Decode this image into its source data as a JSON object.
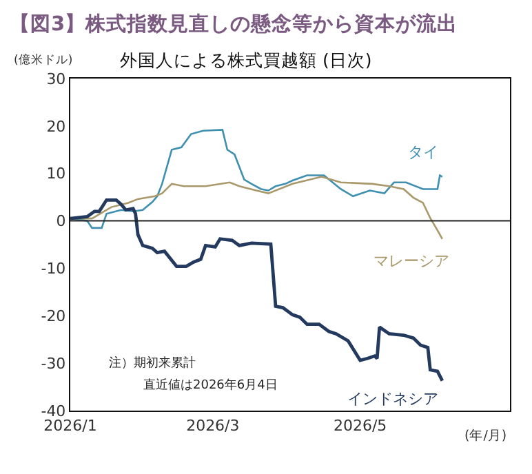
{
  "chart_data": {
    "type": "line",
    "title": "【図3】株式指数見直しの懸念等から資本が流出",
    "subtitle": "外国人による株式買越額 (日次)",
    "ylabel": "(億米ドル)",
    "xlabel": "(年/月)",
    "annotations": [
      "注）期初来累計",
      "直近値は2026年6月4日"
    ],
    "xlim": [
      "2026-01-01",
      "2026-07-02"
    ],
    "xticks": [
      {
        "value": "2026-01-01",
        "label": "2026/1"
      },
      {
        "value": "2026-03-01",
        "label": "2026/3"
      },
      {
        "value": "2026-05-01",
        "label": "2026/5"
      }
    ],
    "ylim": [
      -40,
      30
    ],
    "yticks": [
      -40,
      -30,
      -20,
      -10,
      0,
      10,
      20,
      30
    ],
    "grid": false,
    "legend": false,
    "marker": "none",
    "line_style": "solid",
    "ref_lines": [
      {
        "axis": "y",
        "value": 0
      }
    ],
    "series": [
      {
        "name": "タイ",
        "color": "#3e8fb0",
        "x": [
          "2026-01-01",
          "2026-01-08",
          "2026-01-10",
          "2026-01-14",
          "2026-01-16",
          "2026-01-22",
          "2026-01-27",
          "2026-01-31",
          "2026-02-04",
          "2026-02-06",
          "2026-02-08",
          "2026-02-12",
          "2026-02-16",
          "2026-02-20",
          "2026-02-25",
          "2026-03-05",
          "2026-03-07",
          "2026-03-10",
          "2026-03-14",
          "2026-03-17",
          "2026-03-21",
          "2026-03-24",
          "2026-03-27",
          "2026-03-31",
          "2026-04-03",
          "2026-04-09",
          "2026-04-16",
          "2026-04-23",
          "2026-04-28",
          "2026-05-05",
          "2026-05-11",
          "2026-05-15",
          "2026-05-20",
          "2026-05-27",
          "2026-06-02",
          "2026-06-03",
          "2026-06-04"
        ],
        "values": [
          0.5,
          0,
          -1.5,
          -1.5,
          1.5,
          2.3,
          2,
          2.3,
          4,
          5.2,
          7.8,
          15,
          15.5,
          18.3,
          19,
          19.2,
          15,
          14,
          8.7,
          7.8,
          6.7,
          6.4,
          7.3,
          7.8,
          8.5,
          9.6,
          9.6,
          6.7,
          5.2,
          6.4,
          5.8,
          8.1,
          8.1,
          6.7,
          6.7,
          9.6,
          9.3
        ]
      },
      {
        "name": "マレーシア",
        "color": "#a8986a",
        "x": [
          "2026-01-01",
          "2026-01-10",
          "2026-01-18",
          "2026-01-25",
          "2026-01-29",
          "2026-02-05",
          "2026-02-08",
          "2026-02-12",
          "2026-02-17",
          "2026-02-26",
          "2026-03-08",
          "2026-03-12",
          "2026-03-19",
          "2026-03-24",
          "2026-04-03",
          "2026-04-15",
          "2026-04-23",
          "2026-05-06",
          "2026-05-13",
          "2026-05-19",
          "2026-05-23",
          "2026-05-27",
          "2026-05-30",
          "2026-06-02",
          "2026-06-04"
        ],
        "values": [
          0.5,
          0.5,
          2.9,
          3.8,
          4.6,
          5.2,
          5.8,
          7.8,
          7.3,
          7.3,
          8.1,
          7.3,
          6.4,
          5.8,
          7.8,
          9.3,
          8.1,
          7.8,
          7.3,
          6.7,
          4.9,
          3.8,
          0.6,
          -2,
          -3.8
        ]
      },
      {
        "name": "インドネシア",
        "color": "#233a5e",
        "x": [
          "2026-01-01",
          "2026-01-08",
          "2026-01-11",
          "2026-01-13",
          "2026-01-16",
          "2026-01-20",
          "2026-01-22",
          "2026-01-24",
          "2026-01-27",
          "2026-01-28",
          "2026-01-29",
          "2026-01-31",
          "2026-02-04",
          "2026-02-06",
          "2026-02-09",
          "2026-02-14",
          "2026-02-18",
          "2026-02-21",
          "2026-02-24",
          "2026-02-26",
          "2026-03-02",
          "2026-03-04",
          "2026-03-09",
          "2026-03-12",
          "2026-03-17",
          "2026-03-25",
          "2026-03-27",
          "2026-03-30",
          "2026-04-03",
          "2026-04-06",
          "2026-04-09",
          "2026-04-14",
          "2026-04-18",
          "2026-04-21",
          "2026-04-26",
          "2026-05-01",
          "2026-05-04",
          "2026-05-07",
          "2026-05-08",
          "2026-05-09",
          "2026-05-13",
          "2026-05-19",
          "2026-05-23",
          "2026-05-26",
          "2026-05-29",
          "2026-05-30",
          "2026-06-02",
          "2026-06-04"
        ],
        "values": [
          0.5,
          0.9,
          2,
          2,
          4.4,
          4.4,
          3.5,
          2.3,
          2.6,
          1.5,
          -2.9,
          -5.2,
          -5.8,
          -6.7,
          -6.4,
          -9.6,
          -9.6,
          -8.7,
          -8.1,
          -5.2,
          -5.5,
          -3.8,
          -4.1,
          -5.2,
          -4.7,
          -4.9,
          -18,
          -18.3,
          -19.8,
          -20.3,
          -21.8,
          -21.8,
          -23.3,
          -23.8,
          -25.3,
          -29.4,
          -29,
          -28.5,
          -29,
          -22.4,
          -23.8,
          -24.1,
          -24.7,
          -26.2,
          -26.7,
          -31.4,
          -31.7,
          -33.7
        ]
      }
    ]
  }
}
